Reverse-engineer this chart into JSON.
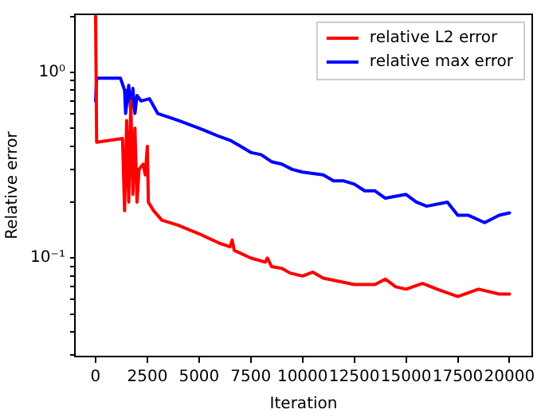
{
  "chart_data": {
    "type": "line",
    "xlabel": "Iteration",
    "ylabel": "Relative error",
    "log": "y",
    "grid": false,
    "legend": "top right",
    "marker": "none",
    "line_style": "solid",
    "xlim": [
      -1000,
      21100
    ],
    "xticks": [
      0,
      2500,
      5000,
      7500,
      10000,
      12500,
      15000,
      17500,
      20000
    ],
    "ylim": [
      0.0295,
      2.05
    ],
    "yticks": [
      {
        "value": 0.03,
        "label": null
      },
      {
        "value": 0.04,
        "label": null
      },
      {
        "value": 0.05,
        "label": null
      },
      {
        "value": 0.06,
        "label": null
      },
      {
        "value": 0.07,
        "label": null
      },
      {
        "value": 0.08,
        "label": null
      },
      {
        "value": 0.09,
        "label": null
      },
      {
        "value": 0.1,
        "label": "10⁻¹"
      },
      {
        "value": 0.2,
        "label": null
      },
      {
        "value": 0.3,
        "label": null
      },
      {
        "value": 0.4,
        "label": null
      },
      {
        "value": 0.5,
        "label": null
      },
      {
        "value": 0.6,
        "label": null
      },
      {
        "value": 0.7,
        "label": null
      },
      {
        "value": 0.8,
        "label": null
      },
      {
        "value": 0.9,
        "label": null
      },
      {
        "value": 1,
        "label": "10⁰"
      },
      {
        "value": 2,
        "label": null
      }
    ],
    "series": [
      {
        "name": "relative L2 error",
        "color": "#ff0000",
        "x": [
          0,
          50,
          1300,
          1400,
          1500,
          1600,
          1700,
          1800,
          1900,
          2000,
          2100,
          2300,
          2400,
          2500,
          2550,
          2800,
          3200,
          4000,
          5000,
          6000,
          6500,
          6600,
          6700,
          7500,
          8200,
          8300,
          8500,
          9000,
          9400,
          10000,
          10500,
          11000,
          12500,
          13500,
          14000,
          14500,
          15000,
          15800,
          16500,
          17500,
          18500,
          19500,
          20000
        ],
        "values": [
          2.0,
          0.42,
          0.44,
          0.18,
          0.55,
          0.2,
          0.7,
          0.22,
          0.5,
          0.2,
          0.3,
          0.32,
          0.28,
          0.4,
          0.2,
          0.18,
          0.16,
          0.15,
          0.135,
          0.12,
          0.115,
          0.125,
          0.11,
          0.1,
          0.095,
          0.1,
          0.09,
          0.088,
          0.083,
          0.08,
          0.084,
          0.078,
          0.072,
          0.072,
          0.077,
          0.07,
          0.068,
          0.073,
          0.068,
          0.062,
          0.068,
          0.064,
          0.064
        ]
      },
      {
        "name": "relative max error",
        "color": "#0000ff",
        "x": [
          0,
          50,
          1200,
          1400,
          1450,
          1600,
          1700,
          1800,
          1900,
          2000,
          2200,
          2600,
          3000,
          4000,
          5000,
          6000,
          6500,
          7000,
          7500,
          8000,
          8500,
          9000,
          9500,
          10000,
          11000,
          11500,
          12000,
          12500,
          13000,
          13500,
          14000,
          15000,
          15500,
          16000,
          17000,
          17500,
          18000,
          18800,
          19500,
          20000
        ],
        "values": [
          0.7,
          0.93,
          0.93,
          0.8,
          0.6,
          0.85,
          0.62,
          0.82,
          0.6,
          0.75,
          0.7,
          0.72,
          0.6,
          0.55,
          0.5,
          0.45,
          0.43,
          0.4,
          0.37,
          0.36,
          0.33,
          0.32,
          0.3,
          0.29,
          0.28,
          0.26,
          0.26,
          0.25,
          0.23,
          0.23,
          0.21,
          0.22,
          0.2,
          0.19,
          0.2,
          0.17,
          0.17,
          0.155,
          0.17,
          0.175
        ]
      }
    ]
  }
}
